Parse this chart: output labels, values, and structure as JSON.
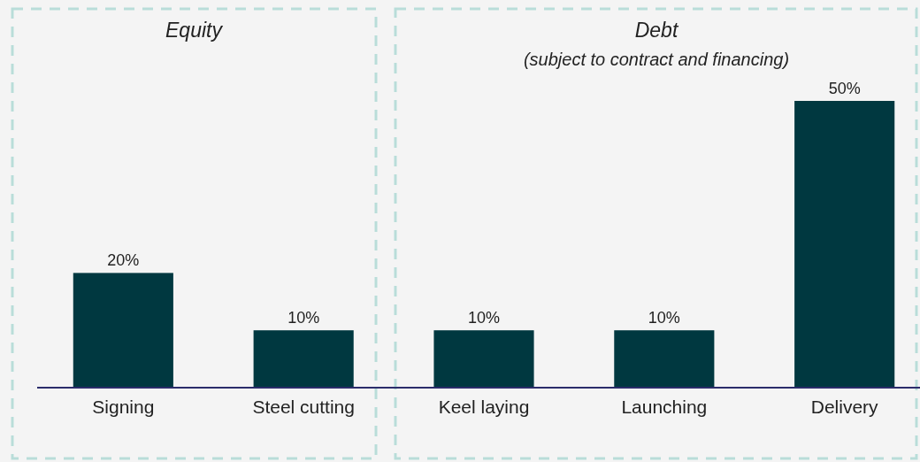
{
  "chart_data": {
    "type": "bar",
    "categories": [
      "Signing",
      "Steel cutting",
      "Keel laying",
      "Launching",
      "Delivery"
    ],
    "values": [
      20,
      10,
      10,
      10,
      50
    ],
    "value_labels": [
      "20%",
      "10%",
      "10%",
      "10%",
      "50%"
    ],
    "color": "#003840",
    "annotations": [
      "Equity",
      "Debt",
      "(subject to contract and financing)"
    ]
  }
}
